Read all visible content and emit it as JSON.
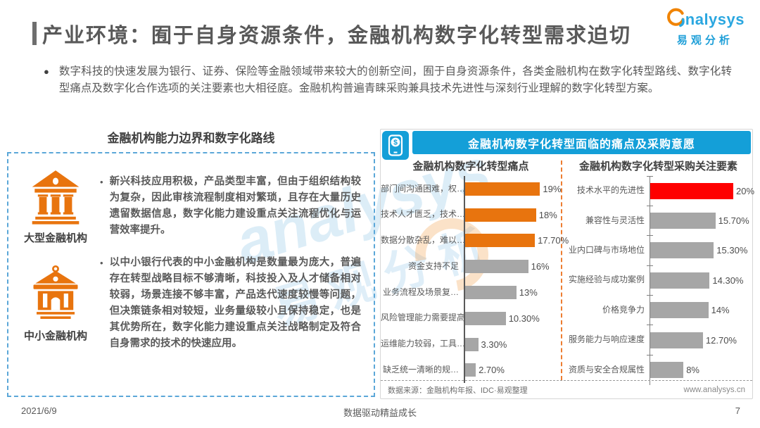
{
  "header": {
    "title": "产业环境：囿于自身资源条件，金融机构数字化转型需求迫切",
    "logo_brand": "nalysys",
    "logo_cn": "易观分析"
  },
  "intro": {
    "bullet": "●",
    "text": "数字科技的快速发展为银行、证券、保险等金融领域带来较大的创新空间，囿于自身资源条件，各类金融机构在数字化转型路线、数字化转型痛点及数字化合作选项的关注要素也大相径庭。金融机构普遍青睐采购兼具技术先进性与深刻行业理解的数字化转型方案。"
  },
  "left_panel": {
    "title": "金融机构能力边界和数字化路线",
    "items": [
      {
        "icon": "bank-large-icon",
        "label": "大型金融机构",
        "bullet": "•",
        "text": "新兴科技应用积极，产品类型丰富，但由于组织结构较为复杂，因此审核流程制度相对繁琐，且存在大量历史遗留数据信息，数字化能力建设重点关注流程优化与运营效率提升。"
      },
      {
        "icon": "bank-small-icon",
        "label": "中小金融机构",
        "bullet": "•",
        "text": "以中小银行代表的中小金融机构是数量最为庞大，普遍存在转型战略目标不够清晰，科技投入及人才储备相对较弱，场景连接不够丰富，产品迭代速度较慢等问题，但决策链条相对较短，业务量级较小且保持稳定，也是其优势所在，数字化能力建设重点关注战略制定及符合自身需求的技术的快速应用。"
      }
    ]
  },
  "right_panel": {
    "banner": "金融机构数字化转型面临的痛点及采购意愿",
    "banner_icon": "mobile-payment-icon",
    "source": "数据来源：金融机构年报、IDC·易观整理",
    "website": "www.analysys.cn"
  },
  "chart_data": [
    {
      "type": "bar",
      "orientation": "horizontal",
      "title": "金融机构数字化转型痛点",
      "categories": [
        "部门间沟通困难，权…",
        "技术人才匮乏，技术…",
        "数据分散杂乱，难以…",
        "资金支持不足",
        "业务流程及场景复…",
        "风险管理能力需要提高",
        "运维能力较弱，工具…",
        "缺乏统一清晰的规…"
      ],
      "values": [
        19,
        18,
        17.7,
        16,
        13,
        10.3,
        3.3,
        2.7
      ],
      "value_labels": [
        "19%",
        "18%",
        "17.70%",
        "16%",
        "13%",
        "10.30%",
        "3.30%",
        "2.70%"
      ],
      "bar_colors": [
        "#E8740E",
        "#E8740E",
        "#E8740E",
        "#A6A6A6",
        "#A6A6A6",
        "#A6A6A6",
        "#A6A6A6",
        "#A6A6A6"
      ],
      "xlim": [
        0,
        20
      ],
      "grid": false,
      "legend": false
    },
    {
      "type": "bar",
      "orientation": "horizontal",
      "title": "金融机构数字化转型采购关注要素",
      "categories": [
        "技术水平的先进性",
        "兼容性与灵活性",
        "业内口碑与市场地位",
        "实施经验与成功案例",
        "价格竞争力",
        "服务能力与响应速度",
        "资质与安全合规属性"
      ],
      "values": [
        20,
        15.7,
        15.3,
        14.3,
        14,
        12.7,
        8
      ],
      "value_labels": [
        "20%",
        "15.70%",
        "15.30%",
        "14.30%",
        "14%",
        "12.70%",
        "8%"
      ],
      "bar_colors": [
        "#FE0000",
        "#A6A6A6",
        "#A6A6A6",
        "#A6A6A6",
        "#A6A6A6",
        "#A6A6A6",
        "#A6A6A6"
      ],
      "xlim": [
        0,
        22
      ],
      "grid": false,
      "legend": false
    }
  ],
  "watermark": {
    "text_en": "analysys",
    "text_cn": "易观分析"
  },
  "footer": {
    "date": "2021/6/9",
    "slogan": "数据驱动精益成长",
    "page": "7"
  },
  "colors": {
    "accent_orange": "#E8740E",
    "accent_red": "#FE0000",
    "accent_gray": "#A6A6A6",
    "banner_blue": "#149FD8",
    "dashed_border_blue": "#5BA7D8",
    "title_gray": "#595959"
  }
}
